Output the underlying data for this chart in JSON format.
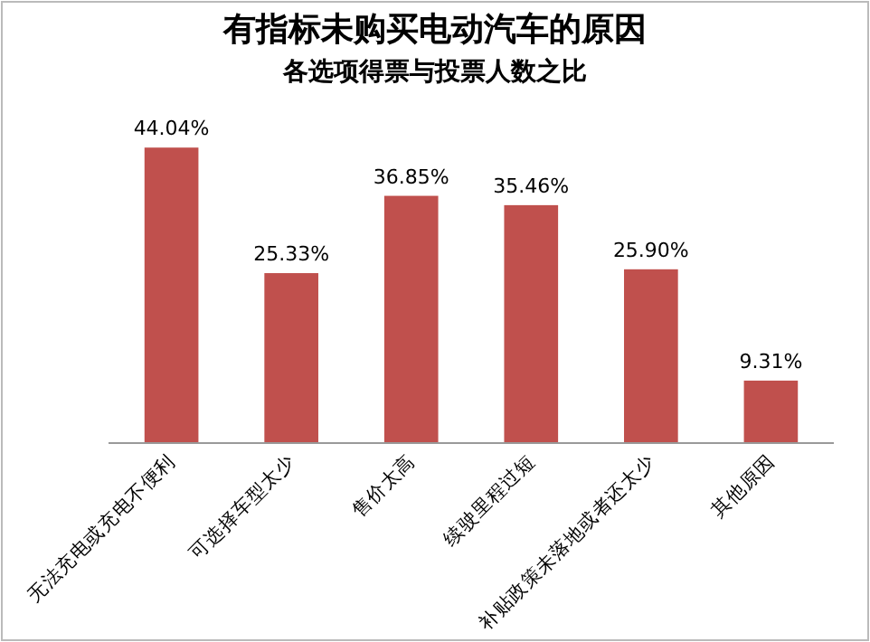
{
  "chart_data": {
    "type": "bar",
    "title": "有指标未购买电动汽车的原因",
    "subtitle": "各选项得票与投票人数之比",
    "categories": [
      "无法充电或充电不便利",
      "可选择车型太少",
      "售价太高",
      "续驶里程过短",
      "补贴政策未落地或者还太少",
      "其他原因"
    ],
    "values": [
      44.04,
      25.33,
      36.85,
      35.46,
      25.9,
      9.31
    ],
    "value_labels": [
      "44.04%",
      "25.33%",
      "36.85%",
      "35.46%",
      "25.90%",
      "9.31%"
    ],
    "color": "#c0504d",
    "grid": false
  }
}
